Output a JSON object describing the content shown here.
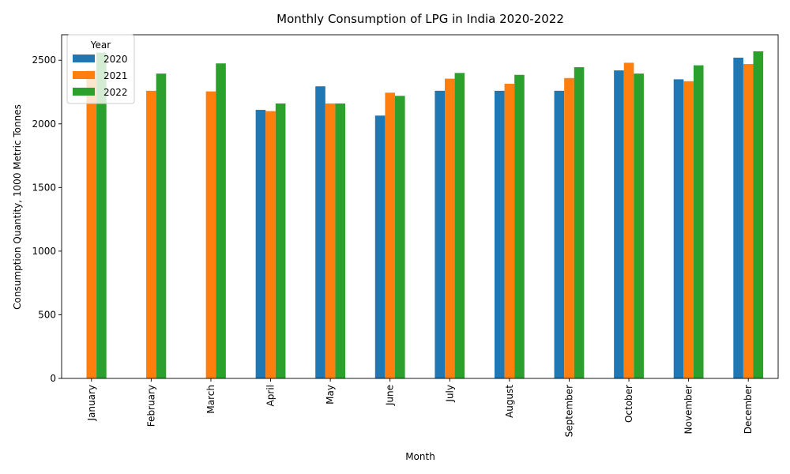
{
  "chart_data": {
    "type": "bar",
    "title": "Monthly Consumption of LPG in India 2020-2022",
    "xlabel": "Month",
    "ylabel": "Consumption Quantity, 1000 Metric Tonnes",
    "ylim": [
      0,
      2700
    ],
    "yticks": [
      0,
      500,
      1000,
      1500,
      2000,
      2500
    ],
    "categories": [
      "January",
      "February",
      "March",
      "April",
      "May",
      "June",
      "July",
      "August",
      "September",
      "October",
      "November",
      "December"
    ],
    "legend": {
      "title": "Year",
      "placement": "top-left"
    },
    "grid": false,
    "series": [
      {
        "name": "2020",
        "color": "#1f77b4",
        "values": [
          0,
          0,
          0,
          2110,
          2295,
          2065,
          2260,
          2260,
          2260,
          2420,
          2350,
          2520
        ]
      },
      {
        "name": "2021",
        "color": "#ff7f0e",
        "values": [
          2420,
          2260,
          2255,
          2100,
          2160,
          2245,
          2355,
          2315,
          2360,
          2480,
          2335,
          2470
        ]
      },
      {
        "name": "2022",
        "color": "#2ca02c",
        "values": [
          2560,
          2395,
          2475,
          2160,
          2160,
          2220,
          2400,
          2385,
          2445,
          2395,
          2460,
          2570
        ]
      }
    ]
  }
}
